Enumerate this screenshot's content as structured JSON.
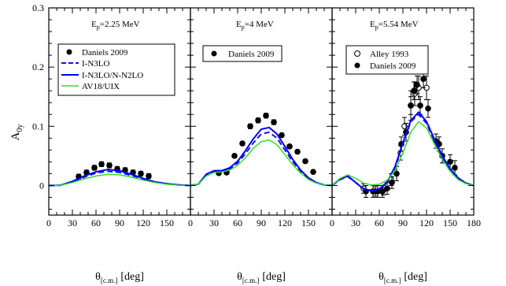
{
  "figure": {
    "ylabel_main": "A",
    "ylabel_sub": "0y",
    "xlabel_main": "θ",
    "xlabel_sub": "[c.m.]",
    "xlabel_unit": "[deg]"
  },
  "colors": {
    "i_n3lo": "#1515d6",
    "i_n3lo_n_n2lo": "#0000ff",
    "av18_uix": "#33dd33",
    "data": "#000000"
  },
  "chart_data": [
    {
      "type": "line",
      "title": "E",
      "title_sub": "p",
      "title_rest": "=2.25 MeV",
      "xlim": [
        0,
        180
      ],
      "ylim": [
        -0.05,
        0.3
      ],
      "xticks": [
        "0",
        "30",
        "60",
        "90",
        "120",
        "150"
      ],
      "yticks": [
        "0",
        "0.1",
        "0.2",
        "0.3"
      ],
      "legend_position": "upper-left",
      "legend": [
        "Daniels 2009",
        "I-N3LO",
        "I-N3LO/N-N2LO",
        "AV18/UIX"
      ],
      "series": [
        {
          "name": "Daniels 2009",
          "kind": "points-filled",
          "x": [
            38,
            48,
            58,
            67,
            77,
            87,
            97,
            107,
            117,
            127
          ],
          "y": [
            0.015,
            0.022,
            0.03,
            0.036,
            0.034,
            0.028,
            0.026,
            0.022,
            0.02,
            0.016
          ],
          "err": [
            0.004,
            0.004,
            0.004,
            0.004,
            0.004,
            0.004,
            0.004,
            0.004,
            0.004,
            0.004
          ]
        },
        {
          "name": "I-N3LO",
          "kind": "dashed",
          "x": [
            0,
            15,
            30,
            45,
            60,
            75,
            90,
            105,
            120,
            135,
            150,
            165,
            180
          ],
          "y": [
            0,
            0.0005,
            0.006,
            0.014,
            0.021,
            0.024,
            0.022,
            0.017,
            0.011,
            0.006,
            0.003,
            0.001,
            0
          ]
        },
        {
          "name": "I-N3LO/N-N2LO",
          "kind": "solid",
          "x": [
            0,
            15,
            30,
            45,
            60,
            75,
            90,
            105,
            120,
            135,
            150,
            165,
            180
          ],
          "y": [
            0,
            0.0005,
            0.007,
            0.016,
            0.023,
            0.027,
            0.025,
            0.019,
            0.012,
            0.006,
            0.003,
            0.001,
            0
          ]
        },
        {
          "name": "AV18/UIX",
          "kind": "solid",
          "x": [
            0,
            15,
            30,
            45,
            60,
            75,
            90,
            105,
            120,
            135,
            150,
            165,
            180
          ],
          "y": [
            0,
            0.0004,
            0.005,
            0.011,
            0.016,
            0.019,
            0.018,
            0.014,
            0.009,
            0.005,
            0.002,
            0.0005,
            0
          ]
        }
      ]
    },
    {
      "type": "line",
      "title": "E",
      "title_sub": "p",
      "title_rest": "=4 MeV",
      "xlim": [
        0,
        180
      ],
      "ylim": [
        -0.05,
        0.3
      ],
      "xticks": [
        "0",
        "30",
        "60",
        "90",
        "120",
        "150"
      ],
      "legend_position": "upper-left",
      "legend": [
        "Daniels 2009"
      ],
      "series": [
        {
          "name": "Daniels 2009",
          "kind": "points-filled",
          "x": [
            36,
            46,
            56,
            66,
            76,
            86,
            96,
            106,
            116,
            126,
            136,
            146,
            156
          ],
          "y": [
            0.021,
            0.022,
            0.05,
            0.071,
            0.1,
            0.11,
            0.118,
            0.107,
            0.085,
            0.066,
            0.057,
            0.041,
            0.023
          ],
          "err": [
            0.003,
            0.003,
            0.003,
            0.003,
            0.004,
            0.004,
            0.004,
            0.004,
            0.003,
            0.003,
            0.003,
            0.003,
            0.003
          ]
        },
        {
          "name": "I-N3LO",
          "kind": "dashed",
          "x": [
            0,
            10,
            20,
            30,
            40,
            50,
            60,
            70,
            80,
            90,
            100,
            110,
            120,
            130,
            140,
            150,
            160,
            170,
            180
          ],
          "y": [
            0,
            0.002,
            0.018,
            0.024,
            0.024,
            0.028,
            0.038,
            0.054,
            0.072,
            0.087,
            0.09,
            0.08,
            0.06,
            0.04,
            0.024,
            0.012,
            0.004,
            0.001,
            0
          ]
        },
        {
          "name": "I-N3LO/N-N2LO",
          "kind": "solid",
          "x": [
            0,
            10,
            20,
            30,
            40,
            50,
            60,
            70,
            80,
            90,
            100,
            110,
            120,
            130,
            140,
            150,
            160,
            170,
            180
          ],
          "y": [
            0,
            0.002,
            0.019,
            0.025,
            0.025,
            0.03,
            0.041,
            0.059,
            0.079,
            0.095,
            0.098,
            0.087,
            0.066,
            0.044,
            0.026,
            0.013,
            0.005,
            0.001,
            0
          ]
        },
        {
          "name": "AV18/UIX",
          "kind": "solid",
          "x": [
            0,
            10,
            20,
            30,
            40,
            50,
            60,
            70,
            80,
            90,
            100,
            110,
            120,
            130,
            140,
            150,
            160,
            170,
            180
          ],
          "y": [
            0,
            0.002,
            0.016,
            0.022,
            0.023,
            0.026,
            0.034,
            0.047,
            0.063,
            0.074,
            0.077,
            0.069,
            0.052,
            0.035,
            0.021,
            0.01,
            0.004,
            0.001,
            0
          ]
        }
      ]
    },
    {
      "type": "line",
      "title": "E",
      "title_sub": "p",
      "title_rest": "=5.54 MeV",
      "xlim": [
        0,
        180
      ],
      "ylim": [
        -0.05,
        0.3
      ],
      "xticks": [
        "0",
        "30",
        "60",
        "90",
        "120",
        "150",
        "180"
      ],
      "legend_position": "upper-left",
      "legend": [
        "Alley 1993",
        "Daniels 2009"
      ],
      "series": [
        {
          "name": "Alley 1993",
          "kind": "points-open",
          "x": [
            40,
            55,
            65,
            75,
            87,
            92,
            100,
            105,
            110,
            120
          ],
          "y": [
            -0.005,
            -0.01,
            -0.008,
            0.01,
            0.055,
            0.1,
            0.135,
            0.155,
            0.165,
            0.165
          ],
          "err": [
            0.008,
            0.008,
            0.008,
            0.01,
            0.012,
            0.015,
            0.025,
            0.02,
            0.02,
            0.02
          ]
        },
        {
          "name": "Daniels 2009",
          "kind": "points-filled",
          "x": [
            43,
            52,
            58,
            64,
            70,
            76,
            82,
            88,
            94,
            100,
            104,
            108,
            112,
            116,
            122,
            132,
            136,
            140,
            150,
            156
          ],
          "y": [
            -0.01,
            -0.01,
            -0.01,
            -0.01,
            -0.005,
            0.005,
            0.02,
            0.07,
            0.09,
            0.135,
            0.16,
            0.17,
            0.135,
            0.18,
            0.13,
            0.075,
            0.07,
            0.05,
            0.04,
            0.03
          ],
          "err": [
            0.01,
            0.01,
            0.01,
            0.01,
            0.01,
            0.01,
            0.012,
            0.012,
            0.015,
            0.015,
            0.015,
            0.015,
            0.015,
            0.015,
            0.015,
            0.012,
            0.012,
            0.012,
            0.012,
            0.012
          ]
        },
        {
          "name": "I-N3LO",
          "kind": "dashed",
          "x": [
            0,
            10,
            20,
            30,
            40,
            50,
            60,
            70,
            80,
            90,
            100,
            110,
            120,
            130,
            140,
            150,
            160,
            170,
            180
          ],
          "y": [
            0,
            0.01,
            0.015,
            0.005,
            -0.005,
            -0.008,
            -0.006,
            0.005,
            0.03,
            0.07,
            0.108,
            0.12,
            0.105,
            0.075,
            0.047,
            0.026,
            0.012,
            0.004,
            0
          ]
        },
        {
          "name": "I-N3LO/N-N2LO",
          "kind": "solid",
          "x": [
            0,
            10,
            20,
            30,
            40,
            50,
            60,
            70,
            80,
            90,
            100,
            110,
            120,
            130,
            140,
            150,
            160,
            170,
            180
          ],
          "y": [
            0,
            0.011,
            0.016,
            0.005,
            -0.006,
            -0.009,
            -0.006,
            0.006,
            0.032,
            0.072,
            0.11,
            0.124,
            0.108,
            0.078,
            0.05,
            0.028,
            0.013,
            0.004,
            0
          ]
        },
        {
          "name": "AV18/UIX",
          "kind": "solid",
          "x": [
            0,
            10,
            20,
            30,
            40,
            50,
            60,
            70,
            80,
            90,
            100,
            110,
            120,
            130,
            140,
            150,
            160,
            170,
            180
          ],
          "y": [
            0,
            0.012,
            0.018,
            0.012,
            0.004,
            0.001,
            0.002,
            0.009,
            0.025,
            0.055,
            0.09,
            0.108,
            0.097,
            0.07,
            0.044,
            0.024,
            0.01,
            0.003,
            0
          ]
        }
      ]
    }
  ]
}
